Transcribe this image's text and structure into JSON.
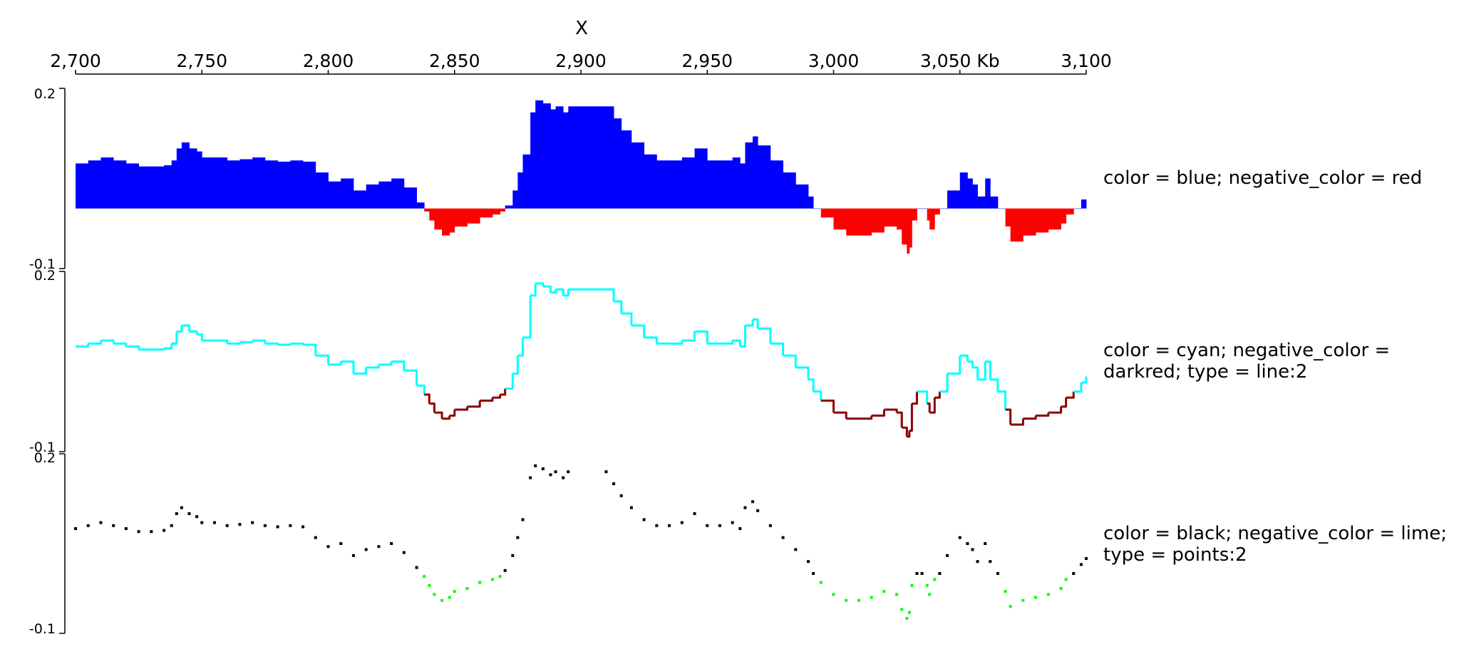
{
  "x_axis": {
    "title": "X",
    "ticks": [
      {
        "pos": 2700,
        "label": "2,700"
      },
      {
        "pos": 2750,
        "label": "2,750"
      },
      {
        "pos": 2800,
        "label": "2,800"
      },
      {
        "pos": 2850,
        "label": "2,850"
      },
      {
        "pos": 2900,
        "label": "2,900"
      },
      {
        "pos": 2950,
        "label": "2,950"
      },
      {
        "pos": 3000,
        "label": "3,000"
      },
      {
        "pos": 3050,
        "label": "3,050 Kb"
      },
      {
        "pos": 3100,
        "label": "3,100"
      }
    ]
  },
  "chart_data": [
    {
      "type": "area",
      "label": "color = blue; negative_color = red",
      "color": "#0000ff",
      "negative_color": "#ff0000",
      "y_range": [
        -0.1,
        0.2
      ],
      "y_ticks": [
        "0.2",
        "-0.1"
      ],
      "x": [
        2700,
        2705,
        2710,
        2715,
        2720,
        2725,
        2730,
        2735,
        2738,
        2740,
        2742,
        2745,
        2748,
        2750,
        2755,
        2760,
        2765,
        2770,
        2775,
        2780,
        2785,
        2790,
        2795,
        2800,
        2805,
        2810,
        2815,
        2820,
        2825,
        2830,
        2835,
        2838,
        2840,
        2842,
        2845,
        2848,
        2850,
        2855,
        2860,
        2865,
        2868,
        2870,
        2873,
        2875,
        2877,
        2880,
        2882,
        2885,
        2888,
        2890,
        2893,
        2895,
        2900,
        2905,
        2910,
        2913,
        2916,
        2920,
        2925,
        2930,
        2935,
        2940,
        2945,
        2950,
        2955,
        2960,
        2963,
        2965,
        2968,
        2970,
        2975,
        2980,
        2985,
        2990,
        2992,
        2995,
        3000,
        3005,
        3010,
        3015,
        3020,
        3025,
        3027,
        3029,
        3030,
        3031,
        3033,
        3035,
        3037,
        3038,
        3040,
        3042,
        3045,
        3050,
        3053,
        3055,
        3057,
        3060,
        3062,
        3065,
        3068,
        3070,
        3075,
        3080,
        3085,
        3090,
        3092,
        3095,
        3098,
        3100
      ],
      "y": [
        0.075,
        0.08,
        0.085,
        0.08,
        0.075,
        0.07,
        0.07,
        0.072,
        0.08,
        0.1,
        0.11,
        0.1,
        0.095,
        0.085,
        0.085,
        0.08,
        0.082,
        0.085,
        0.08,
        0.078,
        0.08,
        0.078,
        0.06,
        0.045,
        0.05,
        0.03,
        0.04,
        0.045,
        0.05,
        0.035,
        0.01,
        -0.005,
        -0.02,
        -0.035,
        -0.045,
        -0.04,
        -0.03,
        -0.025,
        -0.015,
        -0.01,
        -0.005,
        0.005,
        0.03,
        0.06,
        0.09,
        0.16,
        0.18,
        0.175,
        0.165,
        0.17,
        0.16,
        0.17,
        0.17,
        0.17,
        0.17,
        0.15,
        0.13,
        0.11,
        0.09,
        0.08,
        0.08,
        0.085,
        0.1,
        0.08,
        0.08,
        0.085,
        0.075,
        0.11,
        0.12,
        0.105,
        0.08,
        0.06,
        0.04,
        0.02,
        0.0,
        -0.015,
        -0.035,
        -0.045,
        -0.045,
        -0.04,
        -0.03,
        -0.035,
        -0.06,
        -0.075,
        -0.065,
        -0.02,
        0.0,
        0.0,
        -0.02,
        -0.035,
        -0.01,
        0.0,
        0.03,
        0.06,
        0.05,
        0.04,
        0.02,
        0.05,
        0.02,
        0.0,
        -0.03,
        -0.055,
        -0.045,
        -0.04,
        -0.035,
        -0.025,
        -0.01,
        0.0,
        0.015,
        0.025
      ]
    },
    {
      "type": "line",
      "label": "color = cyan; negative_color = darkred; type = line:2",
      "color": "#00ffff",
      "negative_color": "#8b0000",
      "line_width": 2,
      "y_range": [
        -0.1,
        0.2
      ],
      "y_ticks": [
        "0.2",
        "-0.1"
      ],
      "x": [
        2700,
        2705,
        2710,
        2715,
        2720,
        2725,
        2730,
        2735,
        2738,
        2740,
        2742,
        2745,
        2748,
        2750,
        2755,
        2760,
        2765,
        2770,
        2775,
        2780,
        2785,
        2790,
        2795,
        2800,
        2805,
        2810,
        2815,
        2820,
        2825,
        2830,
        2835,
        2838,
        2840,
        2842,
        2845,
        2848,
        2850,
        2855,
        2860,
        2865,
        2868,
        2870,
        2873,
        2875,
        2877,
        2880,
        2882,
        2885,
        2888,
        2890,
        2893,
        2895,
        2900,
        2905,
        2910,
        2913,
        2916,
        2920,
        2925,
        2930,
        2935,
        2940,
        2945,
        2950,
        2955,
        2960,
        2963,
        2965,
        2968,
        2970,
        2975,
        2980,
        2985,
        2990,
        2992,
        2995,
        3000,
        3005,
        3010,
        3015,
        3020,
        3025,
        3027,
        3029,
        3030,
        3031,
        3033,
        3035,
        3037,
        3038,
        3040,
        3042,
        3045,
        3050,
        3053,
        3055,
        3057,
        3060,
        3062,
        3065,
        3068,
        3070,
        3075,
        3080,
        3085,
        3090,
        3092,
        3095,
        3098,
        3100
      ],
      "y": [
        0.075,
        0.08,
        0.085,
        0.08,
        0.075,
        0.07,
        0.07,
        0.072,
        0.08,
        0.1,
        0.11,
        0.1,
        0.095,
        0.085,
        0.085,
        0.08,
        0.082,
        0.085,
        0.08,
        0.078,
        0.08,
        0.078,
        0.06,
        0.045,
        0.05,
        0.03,
        0.04,
        0.045,
        0.05,
        0.035,
        0.01,
        -0.005,
        -0.02,
        -0.035,
        -0.045,
        -0.04,
        -0.03,
        -0.025,
        -0.015,
        -0.01,
        -0.005,
        0.005,
        0.03,
        0.06,
        0.09,
        0.16,
        0.18,
        0.175,
        0.165,
        0.17,
        0.16,
        0.17,
        0.17,
        0.17,
        0.17,
        0.15,
        0.13,
        0.11,
        0.09,
        0.08,
        0.08,
        0.085,
        0.1,
        0.08,
        0.08,
        0.085,
        0.075,
        0.11,
        0.12,
        0.105,
        0.08,
        0.06,
        0.04,
        0.02,
        0.0,
        -0.015,
        -0.035,
        -0.045,
        -0.045,
        -0.04,
        -0.03,
        -0.035,
        -0.06,
        -0.075,
        -0.065,
        -0.02,
        0.0,
        0.0,
        -0.02,
        -0.035,
        -0.01,
        0.0,
        0.03,
        0.06,
        0.05,
        0.04,
        0.02,
        0.05,
        0.02,
        0.0,
        -0.03,
        -0.055,
        -0.045,
        -0.04,
        -0.035,
        -0.025,
        -0.01,
        0.0,
        0.015,
        0.025
      ]
    },
    {
      "type": "scatter",
      "label": "color = black; negative_color = lime; type = points:2",
      "color": "#000000",
      "negative_color": "#00ff00",
      "point_size": 2,
      "y_range": [
        -0.1,
        0.2
      ],
      "y_ticks": [
        "0.2",
        "-0.1"
      ],
      "x": [
        2700,
        2705,
        2710,
        2715,
        2720,
        2725,
        2730,
        2735,
        2738,
        2740,
        2742,
        2745,
        2748,
        2750,
        2755,
        2760,
        2765,
        2770,
        2775,
        2780,
        2785,
        2790,
        2795,
        2800,
        2805,
        2810,
        2815,
        2820,
        2825,
        2830,
        2835,
        2838,
        2840,
        2842,
        2845,
        2848,
        2850,
        2855,
        2860,
        2865,
        2868,
        2870,
        2873,
        2875,
        2877,
        2880,
        2882,
        2885,
        2888,
        2890,
        2893,
        2895,
        2910,
        2913,
        2916,
        2920,
        2925,
        2930,
        2935,
        2940,
        2945,
        2950,
        2955,
        2960,
        2963,
        2965,
        2968,
        2970,
        2975,
        2980,
        2985,
        2990,
        2992,
        2995,
        3000,
        3005,
        3010,
        3015,
        3020,
        3025,
        3027,
        3029,
        3030,
        3031,
        3033,
        3035,
        3037,
        3038,
        3040,
        3042,
        3045,
        3050,
        3053,
        3055,
        3057,
        3060,
        3062,
        3065,
        3068,
        3070,
        3075,
        3080,
        3085,
        3090,
        3092,
        3095,
        3098,
        3100
      ],
      "y": [
        0.075,
        0.08,
        0.085,
        0.08,
        0.075,
        0.07,
        0.07,
        0.072,
        0.08,
        0.1,
        0.11,
        0.1,
        0.095,
        0.085,
        0.085,
        0.08,
        0.082,
        0.085,
        0.08,
        0.078,
        0.08,
        0.078,
        0.06,
        0.045,
        0.05,
        0.03,
        0.04,
        0.045,
        0.05,
        0.035,
        0.01,
        -0.005,
        -0.02,
        -0.035,
        -0.045,
        -0.04,
        -0.03,
        -0.025,
        -0.015,
        -0.01,
        -0.005,
        0.005,
        0.03,
        0.06,
        0.09,
        0.16,
        0.18,
        0.175,
        0.165,
        0.17,
        0.16,
        0.17,
        0.17,
        0.15,
        0.13,
        0.11,
        0.09,
        0.08,
        0.08,
        0.085,
        0.1,
        0.08,
        0.08,
        0.085,
        0.075,
        0.11,
        0.12,
        0.105,
        0.08,
        0.06,
        0.04,
        0.02,
        0.0,
        -0.015,
        -0.035,
        -0.045,
        -0.045,
        -0.04,
        -0.03,
        -0.035,
        -0.06,
        -0.075,
        -0.065,
        -0.02,
        0.0,
        0.0,
        -0.02,
        -0.035,
        -0.01,
        0.0,
        0.03,
        0.06,
        0.05,
        0.04,
        0.02,
        0.05,
        0.02,
        0.0,
        -0.03,
        -0.055,
        -0.045,
        -0.04,
        -0.035,
        -0.025,
        -0.01,
        0.0,
        0.015,
        0.025
      ]
    }
  ]
}
